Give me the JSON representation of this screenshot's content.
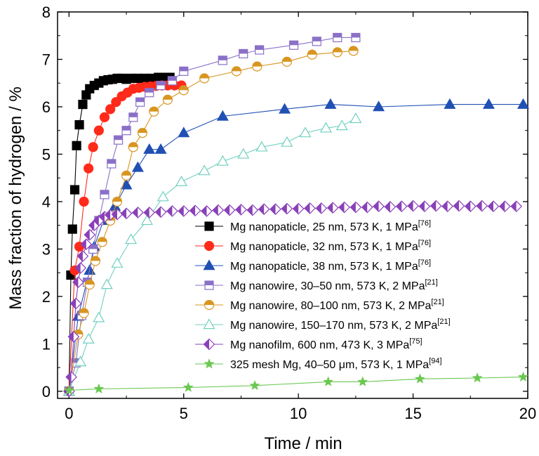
{
  "chart_data": {
    "type": "line",
    "title": "",
    "xlabel": "Time / min",
    "ylabel": "Mass fraction of hydrogen / %",
    "xlim": [
      -0.5,
      20
    ],
    "ylim": [
      -0.15,
      8
    ],
    "xticks": [
      "0",
      "5",
      "10",
      "15",
      "20"
    ],
    "yticks": [
      "0",
      "1",
      "2",
      "3",
      "4",
      "5",
      "6",
      "7",
      "8"
    ],
    "grid": false,
    "legend_position": "lower-right",
    "series": [
      {
        "name": "Mg nanopaticle, 25 nm, 573 K, 1 MPa",
        "ref": "[76]",
        "color": "#000000",
        "marker": "square-filled",
        "x": [
          0,
          0.08,
          0.15,
          0.25,
          0.33,
          0.45,
          0.6,
          0.75,
          0.9,
          1.1,
          1.3,
          1.5,
          1.7,
          1.9,
          2.1,
          2.3,
          2.5,
          2.7,
          3.0,
          3.3,
          3.6,
          3.9,
          4.2,
          4.4
        ],
        "y": [
          0,
          2.45,
          3.42,
          4.25,
          5.18,
          5.62,
          6.05,
          6.25,
          6.38,
          6.45,
          6.5,
          6.55,
          6.57,
          6.58,
          6.6,
          6.6,
          6.58,
          6.6,
          6.6,
          6.6,
          6.6,
          6.62,
          6.62,
          6.62
        ]
      },
      {
        "name": "Mg nanopaticle, 32 nm, 573 K, 1 MPa",
        "ref": "[76]",
        "color": "#ff2a1a",
        "marker": "circle-filled",
        "x": [
          0,
          0.25,
          0.45,
          0.65,
          0.85,
          1.05,
          1.3,
          1.55,
          1.8,
          2.05,
          2.3,
          2.55,
          2.8,
          3.05,
          3.3,
          3.55,
          3.8,
          4.05,
          4.3,
          4.6,
          4.9
        ],
        "y": [
          0,
          2.55,
          3.05,
          4.0,
          4.7,
          5.15,
          5.5,
          5.78,
          5.95,
          6.1,
          6.22,
          6.3,
          6.38,
          6.4,
          6.42,
          6.43,
          6.44,
          6.45,
          6.45,
          6.45,
          6.45
        ]
      },
      {
        "name": "Mg nanopaticle, 38 nm, 573 K, 1 MPa",
        "ref": "[76]",
        "color": "#2050b4",
        "marker": "triangle-filled",
        "x": [
          0,
          0.4,
          0.9,
          1.1,
          1.5,
          2.0,
          2.5,
          3.0,
          3.5,
          4.0,
          5.0,
          6.7,
          9.4,
          11.4,
          13.5,
          16.6,
          18.3,
          19.8
        ],
        "y": [
          0,
          1.58,
          2.55,
          3.05,
          3.6,
          3.9,
          4.35,
          4.72,
          5.1,
          5.1,
          5.45,
          5.8,
          5.95,
          6.05,
          6.0,
          6.05,
          6.05,
          6.05
        ]
      },
      {
        "name": "Mg nanowire, 30–50 nm, 573 K, 2 MPa",
        "ref": "[21]",
        "color": "#8a70c8",
        "marker": "square-half",
        "x": [
          0,
          0.3,
          0.55,
          0.8,
          1.05,
          1.3,
          1.55,
          1.85,
          2.15,
          2.5,
          2.8,
          3.1,
          3.5,
          4.0,
          4.5,
          5.0,
          6.7,
          7.6,
          8.3,
          9.8,
          10.8,
          11.7,
          12.5
        ],
        "y": [
          0,
          0.6,
          1.6,
          2.3,
          3.0,
          3.6,
          4.15,
          4.8,
          5.3,
          5.5,
          5.78,
          6.1,
          6.3,
          6.45,
          6.55,
          6.75,
          6.98,
          7.12,
          7.2,
          7.3,
          7.38,
          7.46,
          7.46
        ]
      },
      {
        "name": "Mg nanowire, 80–100 nm, 573 K, 2 MPa",
        "ref": "[21]",
        "color": "#d89520",
        "marker": "circle-half",
        "x": [
          0,
          0.4,
          0.65,
          0.9,
          1.15,
          1.45,
          1.8,
          2.1,
          2.5,
          2.8,
          3.2,
          3.7,
          4.3,
          5.0,
          5.9,
          7.3,
          8.2,
          9.5,
          10.6,
          11.7,
          12.4
        ],
        "y": [
          0,
          1.2,
          1.65,
          2.25,
          2.75,
          3.15,
          3.6,
          4.0,
          4.55,
          5.15,
          5.45,
          5.9,
          6.15,
          6.35,
          6.6,
          6.75,
          6.85,
          6.95,
          7.1,
          7.15,
          7.18
        ]
      },
      {
        "name": "Mg nanowire, 150–170 nm, 573 K, 2 MPa",
        "ref": "[21]",
        "color": "#70d0c0",
        "marker": "triangle-open",
        "x": [
          0,
          0.5,
          0.85,
          1.3,
          1.65,
          2.1,
          2.7,
          3.4,
          4.1,
          4.9,
          5.9,
          6.7,
          7.6,
          8.4,
          9.5,
          10.3,
          11.2,
          11.9,
          12.5
        ],
        "y": [
          0,
          0.62,
          1.1,
          1.55,
          2.25,
          2.7,
          3.2,
          3.6,
          4.1,
          4.42,
          4.65,
          4.85,
          5.0,
          5.15,
          5.25,
          5.45,
          5.55,
          5.6,
          5.75
        ]
      },
      {
        "name": "Mg nanofilm, 600 nm, 473 K, 3 MPa",
        "ref": "[75]",
        "color": "#8a40b8",
        "marker": "diamond-half",
        "x": [
          0,
          0.1,
          0.2,
          0.3,
          0.4,
          0.5,
          0.6,
          0.75,
          0.9,
          1.1,
          1.3,
          1.55,
          1.8,
          2.1,
          2.5,
          3.0,
          3.5,
          4.0,
          4.5,
          5.0,
          5.5,
          6.0,
          6.5,
          7.0,
          7.5,
          8.0,
          8.5,
          9.0,
          9.5,
          10.0,
          10.5,
          11.0,
          11.5,
          12.0,
          12.5,
          13.0,
          13.5,
          14.0,
          14.5,
          15.0,
          15.5,
          16.0,
          16.5,
          17.0,
          17.5,
          18.0,
          18.5,
          19.0,
          19.5
        ],
        "y": [
          0,
          0.3,
          1.15,
          1.85,
          2.3,
          2.6,
          2.85,
          3.1,
          3.3,
          3.5,
          3.6,
          3.68,
          3.72,
          3.73,
          3.75,
          3.77,
          3.77,
          3.78,
          3.8,
          3.8,
          3.81,
          3.8,
          3.82,
          3.82,
          3.83,
          3.82,
          3.84,
          3.84,
          3.85,
          3.85,
          3.86,
          3.86,
          3.87,
          3.88,
          3.88,
          3.88,
          3.9,
          3.89,
          3.9,
          3.91,
          3.9,
          3.91,
          3.9,
          3.91,
          3.9,
          3.91,
          3.9,
          3.9,
          3.9
        ]
      },
      {
        "name": "325 mesh Mg, 40–50 μm, 573 K, 1 MPa",
        "ref": "[94]",
        "color": "#6ac850",
        "marker": "star-filled",
        "x": [
          0,
          1.3,
          5.2,
          8.1,
          11.3,
          12.8,
          15.3,
          17.8,
          19.8
        ],
        "y": [
          0.02,
          0.05,
          0.08,
          0.12,
          0.2,
          0.2,
          0.26,
          0.28,
          0.3
        ]
      }
    ]
  }
}
